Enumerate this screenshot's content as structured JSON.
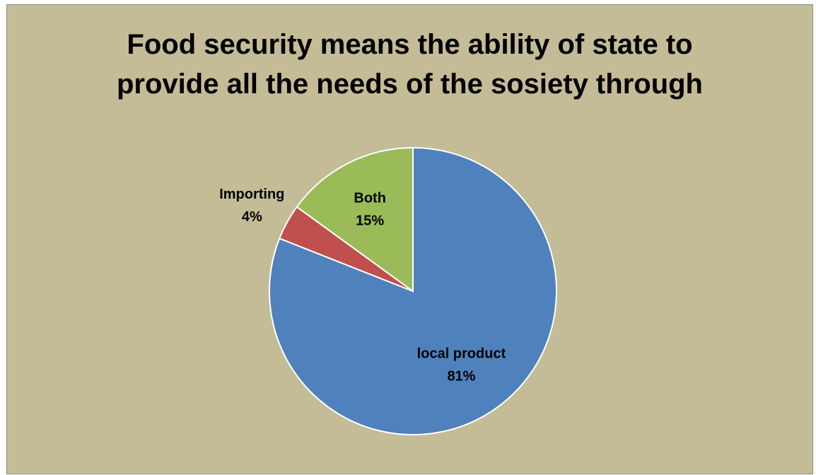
{
  "chart_data": {
    "type": "pie",
    "title": "Food  security means the ability of state to\nprovide all the needs of the sosiety through",
    "slices": [
      {
        "label": "local product",
        "value": 81,
        "value_label": "81%",
        "color": "#4f81bd"
      },
      {
        "label": "Importing",
        "value": 4,
        "value_label": "4%",
        "color": "#c0504d"
      },
      {
        "label": "Both",
        "value": 15,
        "value_label": "15%",
        "color": "#9bbb59"
      }
    ],
    "start_angle_deg": 0,
    "direction": "clockwise",
    "legend": "none",
    "background_color": "#c4bc96"
  }
}
